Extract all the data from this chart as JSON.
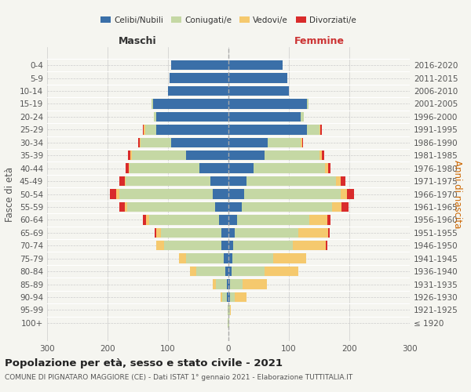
{
  "age_groups": [
    "100+",
    "95-99",
    "90-94",
    "85-89",
    "80-84",
    "75-79",
    "70-74",
    "65-69",
    "60-64",
    "55-59",
    "50-54",
    "45-49",
    "40-44",
    "35-39",
    "30-34",
    "25-29",
    "20-24",
    "15-19",
    "10-14",
    "5-9",
    "0-4"
  ],
  "birth_years": [
    "≤ 1920",
    "1921-1925",
    "1926-1930",
    "1931-1935",
    "1936-1940",
    "1941-1945",
    "1946-1950",
    "1951-1955",
    "1956-1960",
    "1961-1965",
    "1966-1970",
    "1971-1975",
    "1976-1980",
    "1981-1985",
    "1986-1990",
    "1991-1995",
    "1996-2000",
    "2001-2005",
    "2006-2010",
    "2011-2015",
    "2016-2020"
  ],
  "males": {
    "celibi": [
      0,
      0,
      2,
      3,
      5,
      8,
      12,
      12,
      16,
      22,
      26,
      30,
      48,
      70,
      95,
      120,
      120,
      125,
      100,
      98,
      95
    ],
    "coniugati": [
      1,
      1,
      8,
      18,
      48,
      62,
      95,
      100,
      115,
      145,
      155,
      140,
      115,
      90,
      50,
      18,
      4,
      2,
      0,
      0,
      0
    ],
    "vedovi": [
      0,
      0,
      3,
      5,
      10,
      12,
      12,
      8,
      5,
      5,
      5,
      2,
      2,
      2,
      2,
      2,
      0,
      0,
      0,
      0,
      0
    ],
    "divorziati": [
      0,
      0,
      0,
      0,
      0,
      0,
      0,
      2,
      5,
      8,
      10,
      8,
      5,
      4,
      2,
      2,
      0,
      0,
      0,
      0,
      0
    ]
  },
  "females": {
    "nubili": [
      0,
      0,
      2,
      3,
      5,
      6,
      8,
      10,
      14,
      22,
      26,
      30,
      42,
      60,
      65,
      130,
      120,
      130,
      100,
      98,
      90
    ],
    "coniugate": [
      1,
      2,
      8,
      20,
      55,
      68,
      98,
      105,
      120,
      150,
      160,
      148,
      118,
      90,
      55,
      20,
      5,
      2,
      0,
      0,
      0
    ],
    "vedove": [
      0,
      2,
      20,
      40,
      55,
      55,
      55,
      50,
      30,
      15,
      10,
      8,
      5,
      4,
      2,
      2,
      0,
      0,
      0,
      0,
      0
    ],
    "divorziate": [
      0,
      0,
      0,
      0,
      0,
      0,
      2,
      2,
      5,
      12,
      12,
      8,
      4,
      4,
      2,
      2,
      0,
      0,
      0,
      0,
      0
    ]
  },
  "color_celibi": "#3a6fa8",
  "color_coniugati": "#c5d8a4",
  "color_vedovi": "#f5c96e",
  "color_divorziati": "#d92b2b",
  "title": "Popolazione per età, sesso e stato civile - 2021",
  "subtitle": "COMUNE DI PIGNATARO MAGGIORE (CE) - Dati ISTAT 1° gennaio 2021 - Elaborazione TUTTITALIA.IT",
  "xlabel_left": "Maschi",
  "xlabel_right": "Femmine",
  "ylabel_left": "Fasce di età",
  "ylabel_right": "Anni di nascita",
  "xlim": 300,
  "bg_color": "#f5f5f0"
}
